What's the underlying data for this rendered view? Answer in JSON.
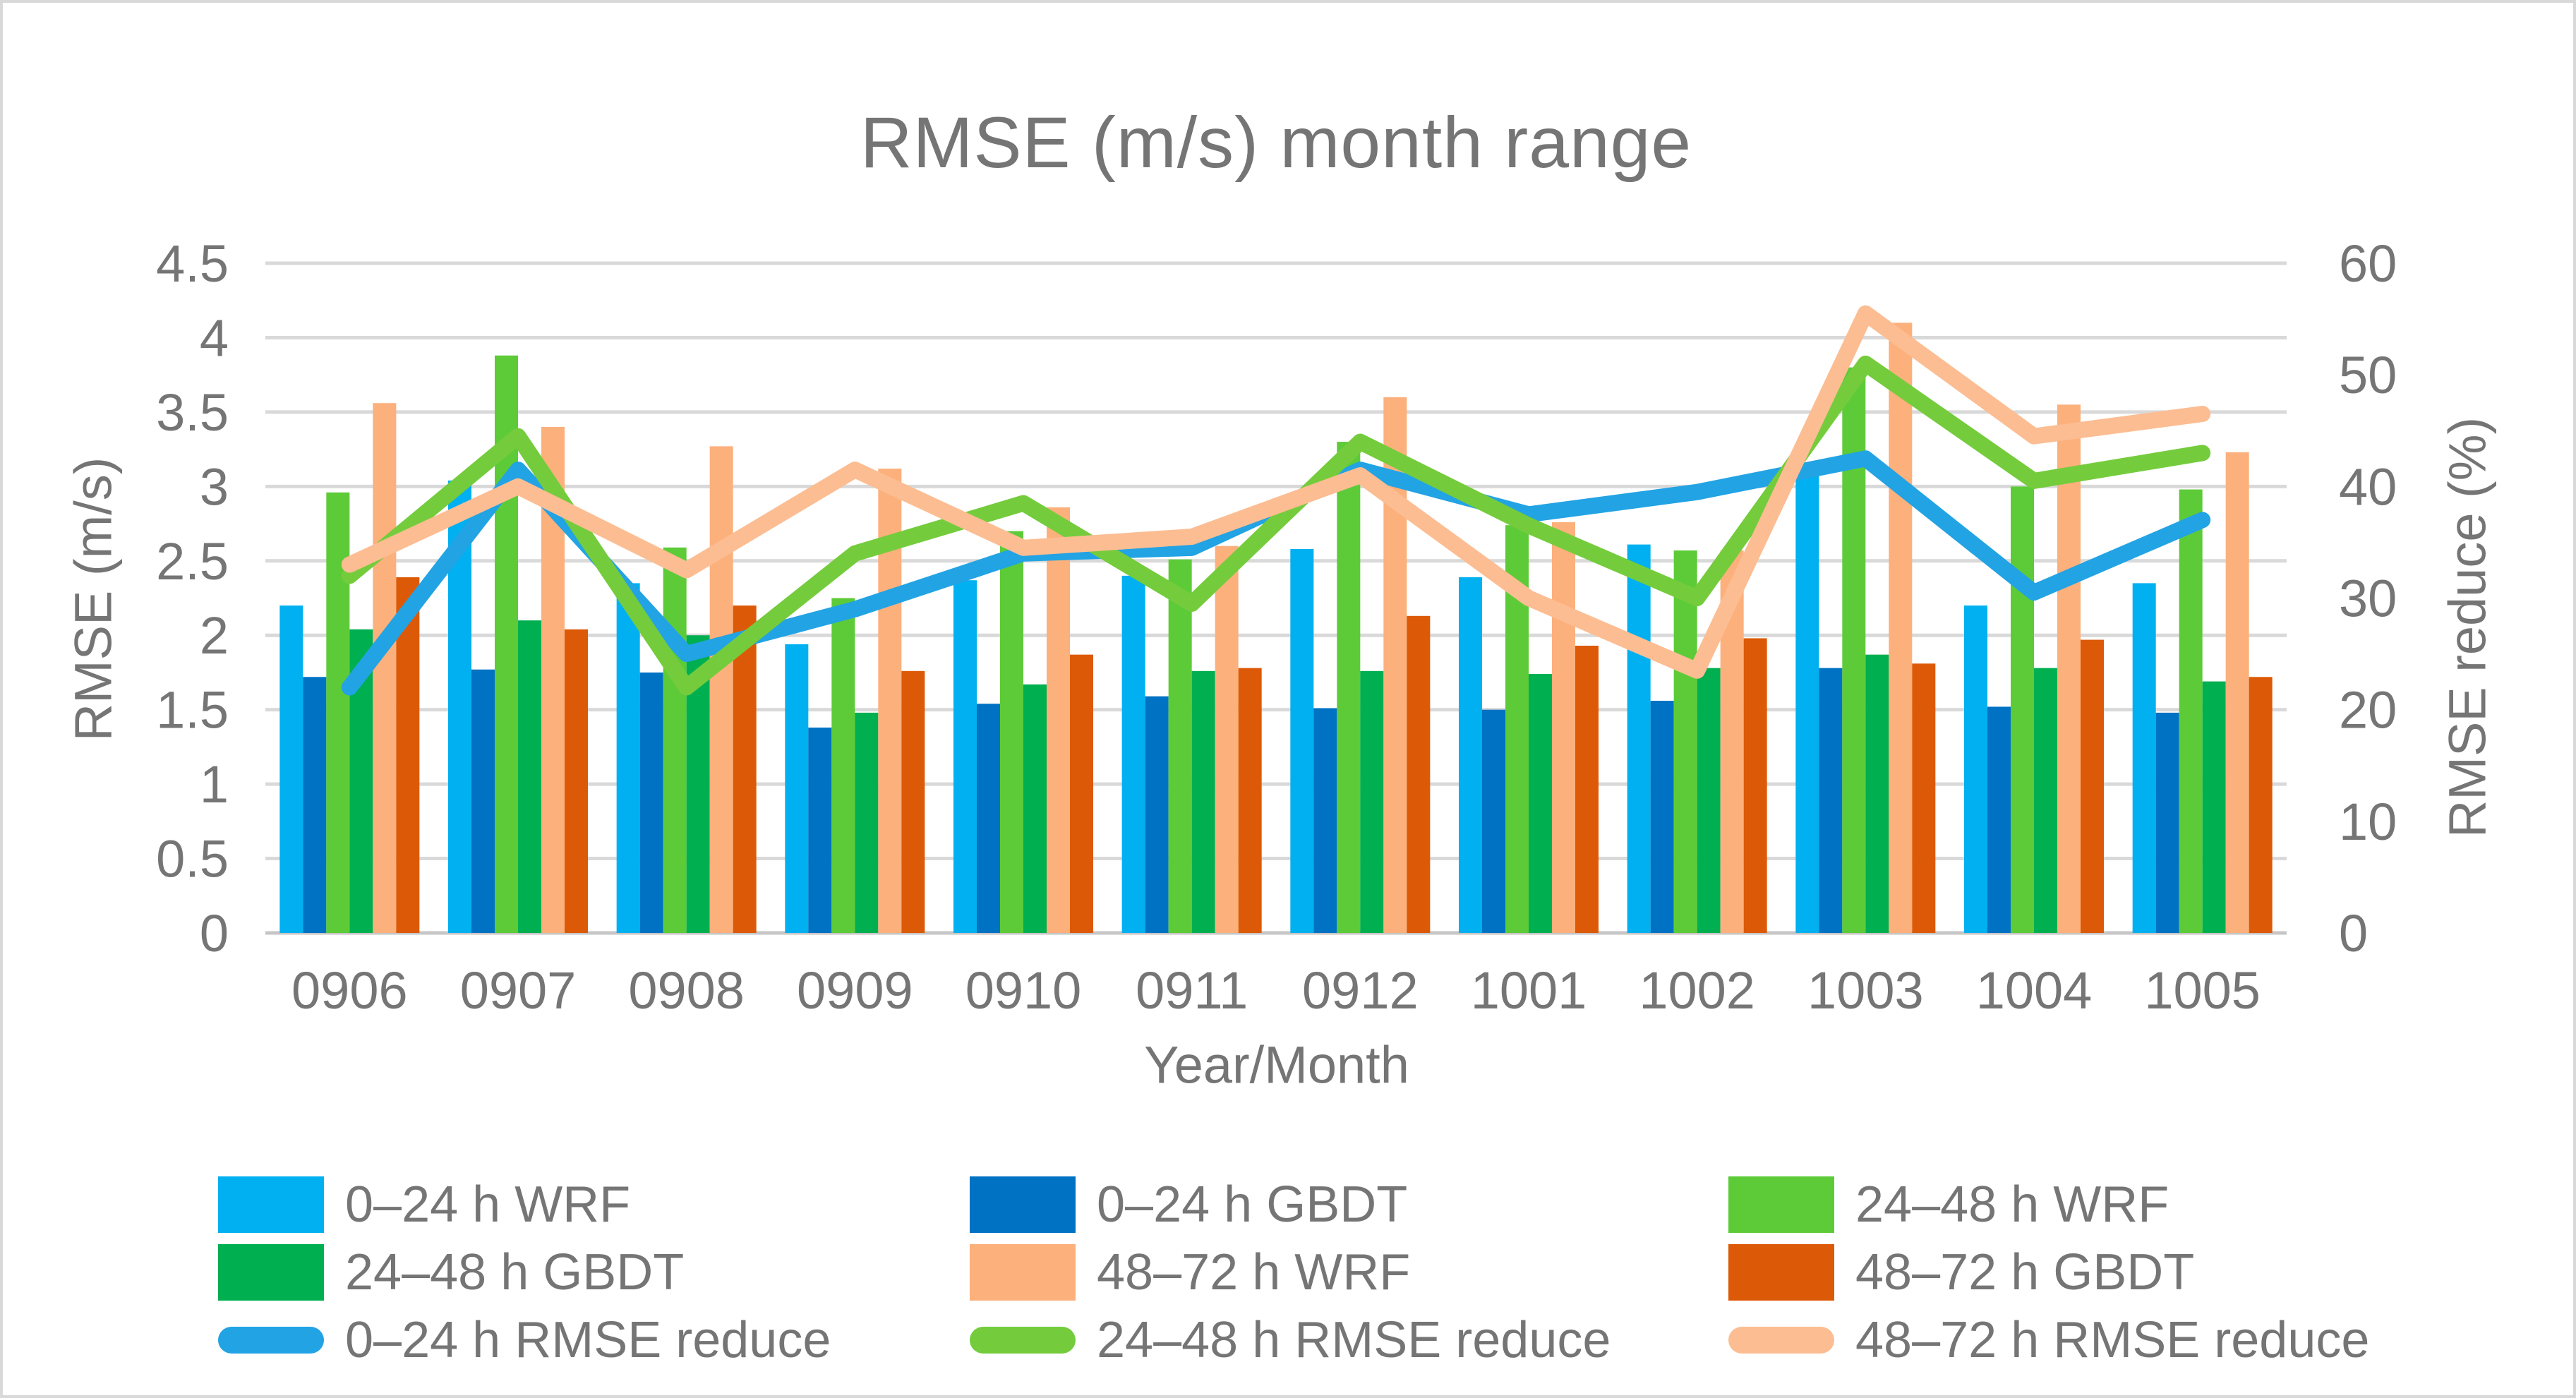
{
  "title": "RMSE (m/s) month range",
  "axes": {
    "left_title": "RMSE (m/s)",
    "right_title": "RMSE reduce (%)",
    "x_title": "Year/Month",
    "left_ticks": [
      "0",
      "0.5",
      "1",
      "1.5",
      "2",
      "2.5",
      "3",
      "3.5",
      "4",
      "4.5"
    ],
    "right_ticks": [
      "0",
      "10",
      "20",
      "30",
      "40",
      "50",
      "60"
    ]
  },
  "style_colors": {
    "gridline": "#D9D9D9",
    "axis_line": "#C6C6C6",
    "text": "#757575",
    "border": "#D9D9D9"
  },
  "chart_data": {
    "type": "combo bar+line, dual axis",
    "title": "RMSE (m/s) month range",
    "xlabel": "Year/Month",
    "ylabel_left": "RMSE (m/s)",
    "ylabel_right": "RMSE reduce (%)",
    "ylim_left": [
      0,
      4.5
    ],
    "ylim_right": [
      0,
      60
    ],
    "grid": true,
    "legend_position": "bottom",
    "categories": [
      "0906",
      "0907",
      "0908",
      "0909",
      "0910",
      "0911",
      "0912",
      "1001",
      "1002",
      "1003",
      "1004",
      "1005"
    ],
    "bar_series": [
      {
        "name": "0–24 h WRF",
        "color": "#00B0F0",
        "values": [
          2.2,
          3.04,
          2.35,
          1.94,
          2.37,
          2.4,
          2.58,
          2.39,
          2.61,
          3.12,
          2.2,
          2.35
        ]
      },
      {
        "name": "0–24 h GBDT",
        "color": "#0072C3",
        "values": [
          1.72,
          1.77,
          1.75,
          1.38,
          1.54,
          1.59,
          1.51,
          1.5,
          1.56,
          1.78,
          1.52,
          1.48
        ]
      },
      {
        "name": "24–48 h WRF",
        "color": "#5DCB38",
        "values": [
          2.96,
          3.88,
          2.59,
          2.25,
          2.7,
          2.51,
          3.3,
          2.74,
          2.57,
          3.8,
          3.0,
          2.98
        ]
      },
      {
        "name": "24–48 h GBDT",
        "color": "#00AF50",
        "values": [
          2.04,
          2.1,
          2.0,
          1.48,
          1.67,
          1.76,
          1.76,
          1.74,
          1.78,
          1.87,
          1.78,
          1.69
        ]
      },
      {
        "name": "48–72 h WRF",
        "color": "#FCB07C",
        "values": [
          3.56,
          3.4,
          3.27,
          3.12,
          2.86,
          2.6,
          3.6,
          2.76,
          2.57,
          4.1,
          3.55,
          3.23
        ]
      },
      {
        "name": "48–72 h GBDT",
        "color": "#DC5A07",
        "values": [
          2.39,
          2.04,
          2.2,
          1.76,
          1.87,
          1.78,
          2.13,
          1.93,
          1.98,
          1.81,
          1.97,
          1.72
        ]
      }
    ],
    "line_series": [
      {
        "name": "0–24 h RMSE reduce",
        "color": "#22A3E4",
        "values": [
          22,
          41.5,
          25,
          29,
          34,
          34.5,
          41.5,
          37.5,
          39.5,
          42.5,
          30.5,
          37
        ]
      },
      {
        "name": "24–48 h RMSE reduce",
        "color": "#74CC3C",
        "values": [
          32,
          44.5,
          22,
          34,
          38.5,
          29.5,
          44,
          36.5,
          30,
          51,
          40.5,
          43
        ]
      },
      {
        "name": "48–72 h RMSE reduce",
        "color": "#FCBD92",
        "values": [
          33,
          40,
          32.5,
          41.5,
          34.5,
          35.5,
          41,
          30,
          23.5,
          55.5,
          44.5,
          46.5
        ]
      }
    ]
  }
}
